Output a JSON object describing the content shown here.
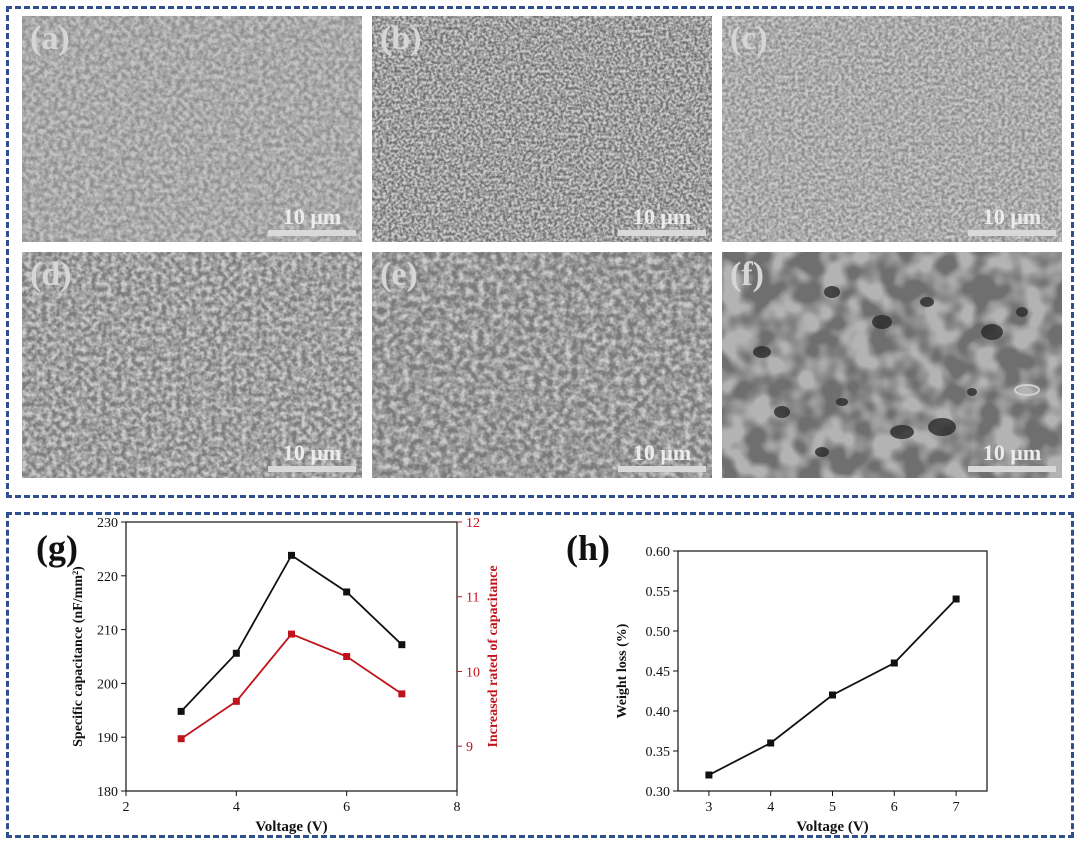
{
  "sem_panels": [
    {
      "label": "(a)",
      "scale": "10 μm"
    },
    {
      "label": "(b)",
      "scale": "10 μm"
    },
    {
      "label": "(c)",
      "scale": "10 μm"
    },
    {
      "label": "(d)",
      "scale": "10 μm"
    },
    {
      "label": "(e)",
      "scale": "10 μm"
    },
    {
      "label": "(f)",
      "scale": "10 μm"
    }
  ],
  "chart_data": [
    {
      "type": "line",
      "panel_label": "(g)",
      "x": [
        3,
        4,
        5,
        6,
        7
      ],
      "xlabel": "Voltage (V)",
      "xlim": [
        2,
        8
      ],
      "xticks": [
        2,
        4,
        6,
        8
      ],
      "ylabel": "Specific capacitance (nF/mm²)",
      "ylim": [
        180,
        230
      ],
      "yticks": [
        180,
        190,
        200,
        210,
        220,
        230
      ],
      "y2label": "Increased rated of capacitance",
      "y2lim": [
        8.4,
        12
      ],
      "y2ticks": [
        9,
        10,
        11,
        12
      ],
      "series": [
        {
          "axis": "left",
          "color": "#111111",
          "values": [
            194.8,
            205.6,
            223.8,
            217.0,
            207.2
          ]
        },
        {
          "axis": "right",
          "color": "#c0141c",
          "values": [
            9.1,
            9.6,
            10.5,
            10.2,
            9.7
          ]
        }
      ]
    },
    {
      "type": "line",
      "panel_label": "(h)",
      "x": [
        3,
        4,
        5,
        6,
        7
      ],
      "xlabel": "Voltage (V)",
      "xlim": [
        2.5,
        7.5
      ],
      "xticks": [
        3,
        4,
        5,
        6,
        7
      ],
      "ylabel": "Weight loss (%)",
      "ylim": [
        0.3,
        0.6
      ],
      "yticks": [
        0.3,
        0.35,
        0.4,
        0.45,
        0.5,
        0.55,
        0.6
      ],
      "series": [
        {
          "axis": "left",
          "color": "#111111",
          "values": [
            0.32,
            0.36,
            0.42,
            0.46,
            0.54
          ]
        }
      ]
    }
  ]
}
